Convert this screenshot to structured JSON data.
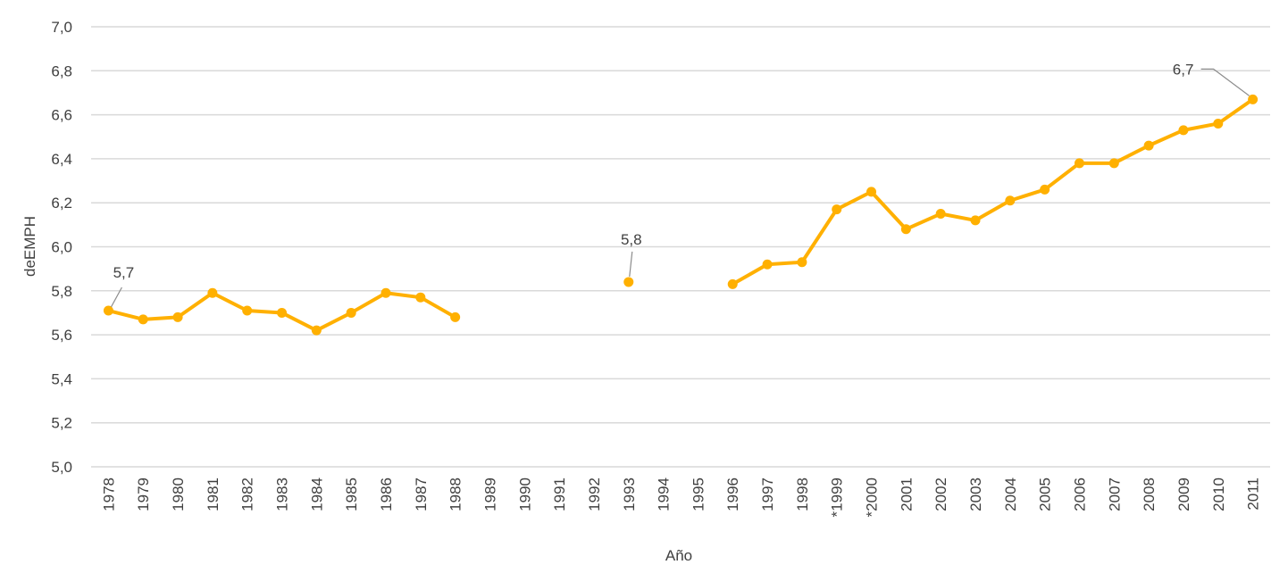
{
  "chart_data": {
    "type": "line",
    "xlabel": "Año",
    "ylabel": "deEMPH",
    "ylim": [
      5.0,
      7.0
    ],
    "yticks": [
      "5,0",
      "5,2",
      "5,4",
      "5,6",
      "5,8",
      "6,0",
      "6,2",
      "6,4",
      "6,6",
      "6,8",
      "7,0"
    ],
    "grid": true,
    "line_color": "#FFB000",
    "categories": [
      "1978",
      "1979",
      "1980",
      "1981",
      "1982",
      "1983",
      "1984",
      "1985",
      "1986",
      "1987",
      "1988",
      "1989",
      "1990",
      "1991",
      "1992",
      "1993",
      "1994",
      "1995",
      "1996",
      "1997",
      "1998",
      "*1999",
      "*2000",
      "2001",
      "2002",
      "2003",
      "2004",
      "2005",
      "2006",
      "2007",
      "2008",
      "2009",
      "2010",
      "2011"
    ],
    "series": [
      {
        "values": [
          5.71,
          5.67,
          5.68,
          5.79,
          5.71,
          5.7,
          5.62,
          5.7,
          5.79,
          5.77,
          5.68,
          null,
          null,
          null,
          null,
          5.84,
          null,
          null,
          5.83,
          5.92,
          5.93,
          6.17,
          6.25,
          6.08,
          6.15,
          6.12,
          6.21,
          6.26,
          6.38,
          6.38,
          6.46,
          6.53,
          6.56,
          6.67
        ]
      }
    ],
    "data_labels": [
      {
        "category": "1978",
        "text": "5,7"
      },
      {
        "category": "1993",
        "text": "5,8"
      },
      {
        "category": "2011",
        "text": "6,7"
      }
    ]
  }
}
